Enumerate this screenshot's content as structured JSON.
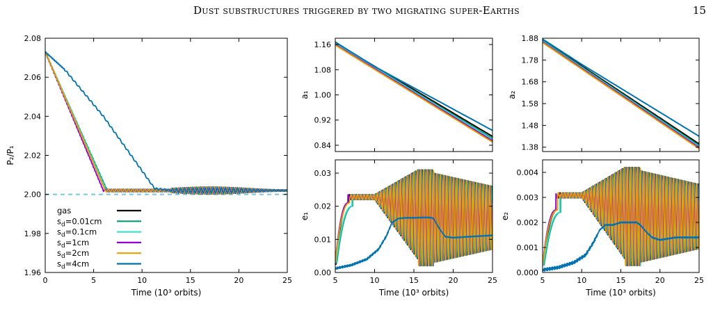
{
  "page": {
    "header_title": "Dust substructures triggered by two migrating super-Earths",
    "page_number": "15"
  },
  "chart_data": [
    {
      "id": "p-ratio",
      "type": "line",
      "xlabel": "Time (10³ orbits)",
      "ylabel": "P₂/P₁",
      "xlim": [
        0,
        25
      ],
      "ylim": [
        1.96,
        2.08
      ],
      "xticks": [
        0,
        5,
        10,
        15,
        20,
        25
      ],
      "yticks": [
        1.96,
        1.98,
        2.0,
        2.02,
        2.04,
        2.06,
        2.08
      ],
      "ytick_labels": [
        "1.96",
        "1.98",
        "2.00",
        "2.02",
        "2.04",
        "2.06",
        "2.08"
      ],
      "reference_line": {
        "y": 2.0,
        "style": "dashed",
        "color": "#7ec8e3"
      },
      "legend_position": "bottom-left",
      "series": [
        {
          "name": "gas",
          "color": "#000000",
          "x": [
            0,
            6.3,
            8,
            25
          ],
          "y": [
            2.073,
            2.002,
            2.002,
            2.002
          ],
          "osc": 0.0018
        },
        {
          "name": "sd=0.01cm",
          "color": "#009e73",
          "x": [
            0,
            6.4,
            8,
            25
          ],
          "y": [
            2.073,
            2.002,
            2.002,
            2.002
          ],
          "osc": 0.0018
        },
        {
          "name": "sd=0.1cm",
          "color": "#40e0d0",
          "x": [
            0,
            6.3,
            8,
            25
          ],
          "y": [
            2.073,
            2.002,
            2.002,
            2.002
          ],
          "osc": 0.0018
        },
        {
          "name": "sd=1cm",
          "color": "#9400d3",
          "x": [
            0,
            6.0,
            8,
            25
          ],
          "y": [
            2.073,
            2.002,
            2.002,
            2.002
          ],
          "osc": 0.0018
        },
        {
          "name": "sd=2cm",
          "color": "#e69f00",
          "x": [
            0,
            6.2,
            8,
            25
          ],
          "y": [
            2.073,
            2.002,
            2.002,
            2.002
          ],
          "osc": 0.0018
        },
        {
          "name": "sd=4cm",
          "color": "#0072b2",
          "x": [
            0,
            2,
            6,
            11.3,
            13,
            25
          ],
          "y": [
            2.073,
            2.064,
            2.04,
            2.003,
            2.002,
            2.002
          ],
          "osc": 0.0012
        }
      ],
      "legend": [
        {
          "label": "gas",
          "color": "#000000"
        },
        {
          "label_base": "s",
          "label_sub": "d",
          "label_rest": "=0.01cm",
          "color": "#009e73"
        },
        {
          "label_base": "s",
          "label_sub": "d",
          "label_rest": "=0.1cm",
          "color": "#40e0d0"
        },
        {
          "label_base": "s",
          "label_sub": "d",
          "label_rest": "=1cm",
          "color": "#9400d3"
        },
        {
          "label_base": "s",
          "label_sub": "d",
          "label_rest": "=2cm",
          "color": "#e69f00"
        },
        {
          "label_base": "s",
          "label_sub": "d",
          "label_rest": "=4cm",
          "color": "#0072b2"
        }
      ]
    },
    {
      "id": "a1",
      "type": "line",
      "xlabel": "",
      "ylabel": "a₁",
      "xlim": [
        5,
        25
      ],
      "ylim": [
        0.82,
        1.18
      ],
      "xticks": [
        5,
        10,
        15,
        20,
        25
      ],
      "yticks": [
        0.84,
        0.92,
        1.0,
        1.08,
        1.16
      ],
      "ytick_labels": [
        "0.84",
        "0.92",
        "1.00",
        "1.08",
        "1.16"
      ],
      "series": [
        {
          "name": "gas",
          "color": "#000000",
          "x": [
            5,
            25
          ],
          "y": [
            1.165,
            0.868
          ]
        },
        {
          "name": "sd=0.01cm",
          "color": "#009e73",
          "x": [
            5,
            25
          ],
          "y": [
            1.163,
            0.862
          ]
        },
        {
          "name": "sd=0.1cm",
          "color": "#40e0d0",
          "x": [
            5,
            25
          ],
          "y": [
            1.162,
            0.858
          ]
        },
        {
          "name": "sd=1cm",
          "color": "#9400d3",
          "x": [
            5,
            25
          ],
          "y": [
            1.16,
            0.854
          ]
        },
        {
          "name": "sd=2cm",
          "color": "#e69f00",
          "x": [
            5,
            25
          ],
          "y": [
            1.158,
            0.85
          ]
        },
        {
          "name": "sd=4cm",
          "color": "#0072b2",
          "x": [
            5,
            10,
            25
          ],
          "y": [
            1.168,
            1.09,
            0.887
          ]
        }
      ]
    },
    {
      "id": "e1",
      "type": "line",
      "xlabel": "Time (10³ orbits)",
      "ylabel": "e₁",
      "xlim": [
        5,
        25
      ],
      "ylim": [
        0,
        0.034
      ],
      "xticks": [
        5,
        10,
        15,
        20,
        25
      ],
      "yticks": [
        0,
        0.01,
        0.02,
        0.03
      ],
      "ytick_labels": [
        "0.00",
        "0.01",
        "0.02",
        "0.03"
      ],
      "series": [
        {
          "name": "gas",
          "color": "#000000",
          "mode": "osc",
          "ramp": [
            5.1,
            6.7,
            0.0025,
            0.021
          ]
        },
        {
          "name": "sd=0.01cm",
          "color": "#009e73",
          "mode": "osc",
          "ramp": [
            5.2,
            7.2,
            0.003,
            0.02
          ]
        },
        {
          "name": "sd=0.1cm",
          "color": "#40e0d0",
          "mode": "osc",
          "ramp": [
            5.1,
            7.1,
            0.003,
            0.02
          ]
        },
        {
          "name": "sd=1cm",
          "color": "#9400d3",
          "mode": "osc",
          "ramp": [
            5.0,
            6.6,
            0.003,
            0.021
          ]
        },
        {
          "name": "sd=2cm",
          "color": "#e69f00",
          "mode": "osc",
          "ramp": [
            5.0,
            6.8,
            0.003,
            0.021
          ]
        },
        {
          "name": "sd=4cm",
          "color": "#0072b2",
          "mode": "smooth",
          "x": [
            5,
            7,
            9,
            10.5,
            11.5,
            12.2,
            13,
            14,
            15,
            16,
            17,
            17.5,
            18.3,
            19,
            20,
            22,
            25
          ],
          "y": [
            0.0012,
            0.0022,
            0.004,
            0.007,
            0.011,
            0.015,
            0.0163,
            0.0165,
            0.0165,
            0.0166,
            0.0166,
            0.0163,
            0.013,
            0.0108,
            0.0105,
            0.0108,
            0.0112
          ]
        }
      ]
    },
    {
      "id": "a2",
      "type": "line",
      "xlabel": "",
      "ylabel": "a₂",
      "xlim": [
        5,
        25
      ],
      "ylim": [
        1.36,
        1.88
      ],
      "xticks": [
        5,
        10,
        15,
        20,
        25
      ],
      "yticks": [
        1.38,
        1.48,
        1.58,
        1.68,
        1.78,
        1.88
      ],
      "ytick_labels": [
        "1.38",
        "1.48",
        "1.58",
        "1.68",
        "1.78",
        "1.88"
      ],
      "series": [
        {
          "name": "gas",
          "color": "#000000",
          "x": [
            5,
            25
          ],
          "y": [
            1.872,
            1.395
          ]
        },
        {
          "name": "sd=0.01cm",
          "color": "#009e73",
          "x": [
            5,
            25
          ],
          "y": [
            1.869,
            1.388
          ]
        },
        {
          "name": "sd=0.1cm",
          "color": "#40e0d0",
          "x": [
            5,
            25
          ],
          "y": [
            1.866,
            1.382
          ]
        },
        {
          "name": "sd=1cm",
          "color": "#9400d3",
          "x": [
            5,
            25
          ],
          "y": [
            1.863,
            1.378
          ]
        },
        {
          "name": "sd=2cm",
          "color": "#e69f00",
          "x": [
            5,
            25
          ],
          "y": [
            1.86,
            1.373
          ]
        },
        {
          "name": "sd=4cm",
          "color": "#0072b2",
          "x": [
            5,
            10,
            25
          ],
          "y": [
            1.876,
            1.76,
            1.43
          ]
        }
      ]
    },
    {
      "id": "e2",
      "type": "line",
      "xlabel": "Time (10³ orbits)",
      "ylabel": "e₂",
      "xlim": [
        5,
        25
      ],
      "ylim": [
        0,
        0.0045
      ],
      "xticks": [
        5,
        10,
        15,
        20,
        25
      ],
      "yticks": [
        0,
        0.001,
        0.002,
        0.003,
        0.004
      ],
      "ytick_labels": [
        "0.000",
        "0.001",
        "0.002",
        "0.003",
        "0.004"
      ],
      "series": [
        {
          "name": "gas",
          "color": "#000000",
          "mode": "osc",
          "ramp": [
            5.1,
            6.9,
            0.0003,
            0.0025
          ]
        },
        {
          "name": "sd=0.01cm",
          "color": "#009e73",
          "mode": "osc",
          "ramp": [
            5.2,
            7.3,
            0.0003,
            0.0024
          ]
        },
        {
          "name": "sd=0.1cm",
          "color": "#40e0d0",
          "mode": "osc",
          "ramp": [
            5.1,
            7.2,
            0.0003,
            0.0024
          ]
        },
        {
          "name": "sd=1cm",
          "color": "#9400d3",
          "mode": "osc",
          "ramp": [
            5.0,
            6.7,
            0.0003,
            0.0025
          ]
        },
        {
          "name": "sd=2cm",
          "color": "#e69f00",
          "mode": "osc",
          "ramp": [
            5.0,
            6.9,
            0.0003,
            0.0025
          ]
        },
        {
          "name": "sd=4cm",
          "color": "#0072b2",
          "mode": "smooth",
          "x": [
            5,
            7,
            9,
            10.5,
            11.5,
            12.3,
            13,
            14,
            15,
            16,
            17,
            17.5,
            18.3,
            19,
            20,
            22,
            25
          ],
          "y": [
            0.0001,
            0.0002,
            0.0004,
            0.0007,
            0.0012,
            0.0017,
            0.0019,
            0.0019,
            0.002,
            0.002,
            0.002,
            0.0019,
            0.0016,
            0.0014,
            0.0013,
            0.0014,
            0.0014
          ]
        }
      ]
    }
  ]
}
